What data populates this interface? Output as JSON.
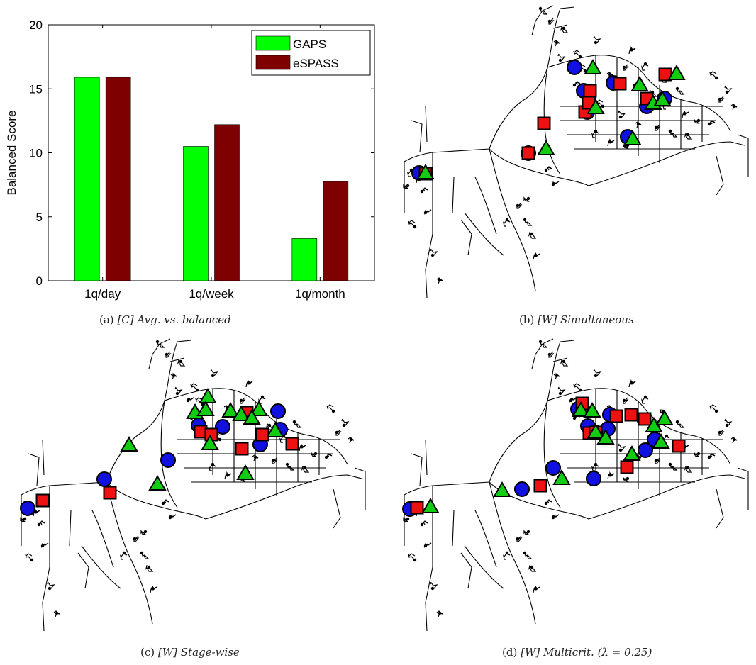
{
  "chart_data": [
    {
      "type": "bar",
      "title": "",
      "xlabel": "",
      "ylabel": "Balanced Score",
      "ylim": [
        0,
        20
      ],
      "yticks": [
        0,
        5,
        10,
        15,
        20
      ],
      "categories": [
        "1q/day",
        "1q/week",
        "1q/month"
      ],
      "series": [
        {
          "name": "GAPS",
          "values": [
            15.9,
            10.5,
            3.3
          ],
          "color": "#00ff00"
        },
        {
          "name": "eSPASS",
          "values": [
            15.9,
            12.2,
            7.75
          ],
          "color": "#7f0000"
        }
      ],
      "legend": "top-right",
      "grid": false
    }
  ],
  "captions": {
    "a": {
      "prefix": "(a)",
      "text": "[C] Avg. vs. balanced"
    },
    "b": {
      "prefix": "(b)",
      "text": "[W] Simultaneous"
    },
    "c": {
      "prefix": "(c)",
      "text": "[W] Stage-wise"
    },
    "d": {
      "prefix": "(d)",
      "text": "[W] Multicrit.",
      "suffix": "(λ = 0.25)"
    }
  },
  "colors": {
    "circle": "#1010e0",
    "square": "#ee1111",
    "triangle": "#11cc11"
  },
  "marker_icons": [
    "circle-marker",
    "square-marker",
    "triangle-marker"
  ]
}
